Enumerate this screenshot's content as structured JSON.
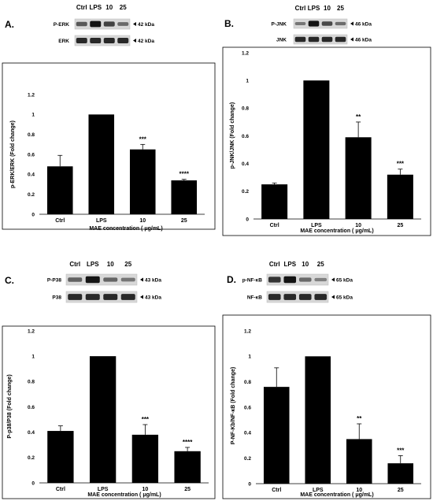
{
  "chart_data": [
    {
      "panel": "A.",
      "type": "bar",
      "categories": [
        "Ctrl",
        "LPS",
        "10",
        "25"
      ],
      "values": [
        0.48,
        1.0,
        0.65,
        0.34
      ],
      "errors": [
        0.11,
        0.0,
        0.05,
        0.01
      ],
      "significance": [
        "",
        "",
        "***",
        "****"
      ],
      "ylabel": "p-ERK/ERK (Fold change)",
      "xlabel": "MAE concentration ( μg/mL)",
      "ylim": [
        0,
        1.2
      ],
      "yticks": [
        "0",
        "0.2",
        "0.4",
        "0.6",
        "0.8",
        "1",
        "1.2"
      ],
      "blot": {
        "lanes": [
          "Ctrl",
          "LPS",
          "10",
          "25"
        ],
        "rows": [
          {
            "label": "P-ERK",
            "kda": "42 kDa"
          },
          {
            "label": "ERK",
            "kda": "42 kDa"
          }
        ]
      },
      "color": "#000000"
    },
    {
      "panel": "B.",
      "type": "bar",
      "categories": [
        "Ctrl",
        "LPS",
        "10",
        "25"
      ],
      "values": [
        0.25,
        1.0,
        0.59,
        0.32
      ],
      "errors": [
        0.01,
        0.0,
        0.11,
        0.04
      ],
      "significance": [
        "",
        "",
        "**",
        "***"
      ],
      "ylabel": "p-JNK/JNK (Fold change)",
      "xlabel": "MAE concentration ( μg/mL)",
      "ylim": [
        0,
        1.2
      ],
      "yticks": [
        "0",
        "0.2",
        "0.4",
        "0.6",
        "0.8",
        "1",
        "1.2"
      ],
      "blot": {
        "lanes": [
          "Ctrl",
          "LPS",
          "10",
          "25"
        ],
        "rows": [
          {
            "label": "P-JNK",
            "kda": "46 kDa"
          },
          {
            "label": "JNK",
            "kda": "46 kDa"
          }
        ]
      },
      "color": "#000000"
    },
    {
      "panel": "C.",
      "type": "bar",
      "categories": [
        "Ctrl",
        "LPS",
        "10",
        "25"
      ],
      "values": [
        0.41,
        1.0,
        0.38,
        0.25
      ],
      "errors": [
        0.04,
        0.0,
        0.08,
        0.03
      ],
      "significance": [
        "",
        "",
        "***",
        "****"
      ],
      "ylabel": "P-p38/P38 (Fold change)",
      "xlabel": "MAE concentration ( μg/mL)",
      "ylim": [
        0,
        1.2
      ],
      "yticks": [
        "0",
        "0.2",
        "0.4",
        "0.6",
        "0.8",
        "1",
        "1.2"
      ],
      "blot": {
        "lanes": [
          "Ctrl",
          "LPS",
          "10",
          "25"
        ],
        "rows": [
          {
            "label": "P-P38",
            "kda": "43 kDa"
          },
          {
            "label": "P38",
            "kda": "43 kDa"
          }
        ]
      },
      "color": "#000000"
    },
    {
      "panel": "D.",
      "type": "bar",
      "categories": [
        "Ctrl",
        "LPS",
        "10",
        "25"
      ],
      "values": [
        0.76,
        1.0,
        0.35,
        0.16
      ],
      "errors": [
        0.15,
        0.0,
        0.12,
        0.06
      ],
      "significance": [
        "",
        "",
        "**",
        "***"
      ],
      "ylabel": "P-NF-Kb/NF-κB (Fold change)",
      "xlabel": "MAE concentration ( μg/mL)",
      "ylim": [
        0,
        1.2
      ],
      "yticks": [
        "0",
        "0.2",
        "0.4",
        "0.6",
        "0.8",
        "1",
        "1.2"
      ],
      "blot": {
        "lanes": [
          "Ctrl",
          "LPS",
          "10",
          "25"
        ],
        "rows": [
          {
            "label": "p-NF-κB",
            "kda": "65 kDa"
          },
          {
            "label": "NF-κB",
            "kda": "65 kDa"
          }
        ]
      },
      "color": "#000000"
    }
  ]
}
